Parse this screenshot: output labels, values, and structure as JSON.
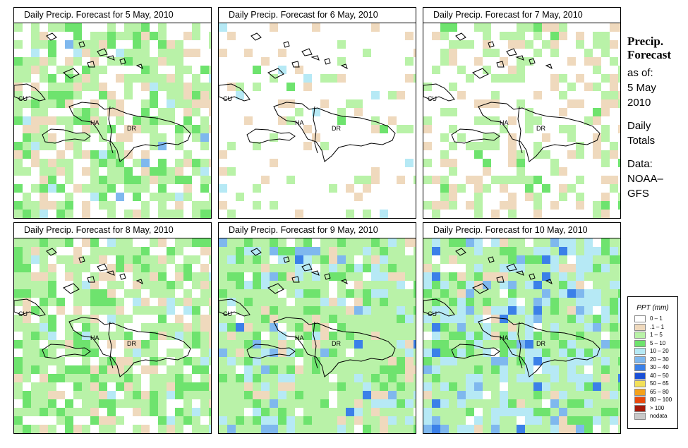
{
  "panels": [
    {
      "title": "Daily Precip. Forecast for  5 May, 2010",
      "pattern": "mix"
    },
    {
      "title": "Daily Precip. Forecast for  6 May, 2010",
      "pattern": "dry"
    },
    {
      "title": "Daily Precip. Forecast for  7 May, 2010",
      "pattern": "light"
    },
    {
      "title": "Daily Precip. Forecast for  8 May, 2010",
      "pattern": "mix2"
    },
    {
      "title": "Daily Precip. Forecast for  9 May, 2010",
      "pattern": "wet"
    },
    {
      "title": "Daily Precip. Forecast for  10 May, 2010",
      "pattern": "wetter"
    }
  ],
  "map_labels": {
    "cuba": "CU",
    "haiti": "HA",
    "dominican_republic": "DR"
  },
  "sidebar": {
    "heading_line1": "Precip.",
    "heading_line2": "Forecast",
    "as_of_label": "as of:",
    "date_line1": "5 May",
    "date_line2": "2010",
    "totals_line1": "Daily",
    "totals_line2": "Totals",
    "data_line1": "Data:",
    "data_line2": "NOAA–",
    "data_line3": "GFS"
  },
  "legend": {
    "title": "PPT (mm)",
    "items": [
      {
        "label": "0 – 1",
        "color": "#ffffff"
      },
      {
        "label": ".1 – 1",
        "color": "#efd9bd"
      },
      {
        "label": "1 – 5",
        "color": "#b9f2a8"
      },
      {
        "label": "5 – 10",
        "color": "#6ee36e"
      },
      {
        "label": "10 – 20",
        "color": "#b6e9f5"
      },
      {
        "label": "20 – 30",
        "color": "#7fb8ee"
      },
      {
        "label": "30 – 40",
        "color": "#3b80e8"
      },
      {
        "label": "40 – 50",
        "color": "#1a4fd6"
      },
      {
        "label": "50 – 65",
        "color": "#f2e05a"
      },
      {
        "label": "65 – 80",
        "color": "#f4a21c"
      },
      {
        "label": "80 – 100",
        "color": "#e8490d"
      },
      {
        "label": "> 100",
        "color": "#a61a0a"
      },
      {
        "label": "nodata",
        "color": "#c8c8c8"
      }
    ]
  }
}
